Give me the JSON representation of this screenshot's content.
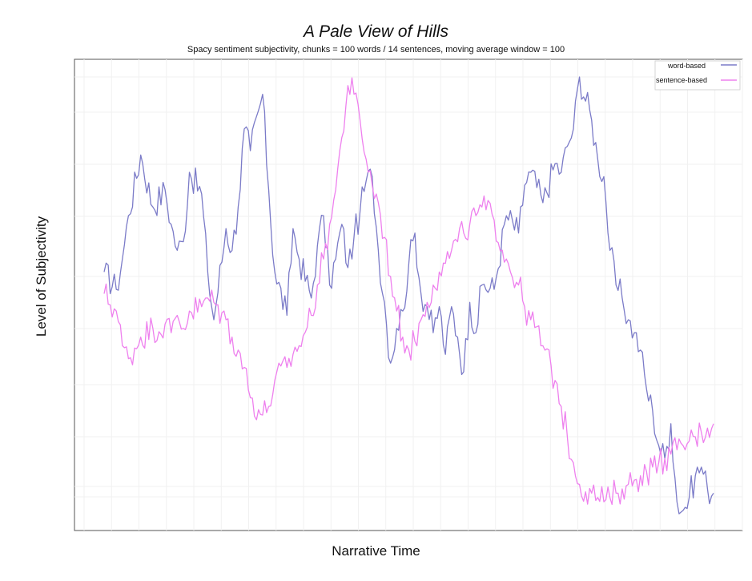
{
  "chart_data": {
    "type": "line",
    "title": "A Pale View of Hills",
    "subtitle": "Spacy sentiment subjectivity, chunks = 100 words / 14 sentences, moving average window = 100",
    "xlabel": "Narrative Time",
    "ylabel": "Level of Subjectivity",
    "grid": true,
    "legend_position": "top-right",
    "x_ticks_labeled": false,
    "y_ticks_labeled": false,
    "xlim": [
      0,
      100
    ],
    "ylim": [
      0,
      100
    ],
    "series": [
      {
        "name": "word-based",
        "color": "#7b7bc8",
        "x": [
          0,
          2,
          3,
          4,
          6,
          8,
          10,
          11,
          12,
          13,
          14,
          16,
          17,
          18,
          20,
          21,
          22,
          23,
          24,
          26,
          27,
          28,
          30,
          31,
          32,
          34,
          35,
          36,
          37,
          38,
          39,
          40,
          41,
          42,
          43,
          44,
          45,
          46,
          47,
          48,
          49,
          50,
          51,
          52,
          53,
          54,
          55,
          56,
          57,
          58,
          59,
          60,
          61,
          62,
          64,
          66,
          68,
          69,
          70,
          72,
          74,
          75,
          76,
          77,
          78,
          80,
          81,
          82,
          83,
          84,
          85,
          86,
          87,
          88,
          89,
          90,
          91,
          92,
          93,
          94,
          95,
          96,
          97,
          98,
          99,
          100
        ],
        "values": [
          55,
          51,
          58,
          68,
          82,
          70,
          74,
          66,
          60,
          62,
          78,
          73,
          55,
          44,
          65,
          60,
          70,
          88,
          83,
          96,
          74,
          55,
          45,
          65,
          58,
          49,
          61,
          68,
          52,
          58,
          66,
          56,
          63,
          69,
          76,
          77,
          60,
          48,
          34,
          42,
          46,
          57,
          64,
          50,
          47,
          41,
          47,
          36,
          47,
          40,
          32,
          48,
          41,
          52,
          51,
          68,
          64,
          75,
          78,
          71,
          80,
          78,
          84,
          88,
          100,
          90,
          81,
          77,
          60,
          52,
          49,
          44,
          41,
          37,
          28,
          23,
          15,
          12,
          20,
          2,
          0,
          3,
          8,
          10,
          5,
          4
        ]
      },
      {
        "name": "sentence-based",
        "color": "#ee80ee",
        "x": [
          0,
          2,
          3,
          4,
          6,
          8,
          10,
          11,
          12,
          13,
          14,
          16,
          17,
          18,
          20,
          21,
          22,
          23,
          24,
          26,
          27,
          28,
          30,
          31,
          32,
          34,
          35,
          36,
          37,
          38,
          39,
          40,
          41,
          42,
          43,
          44,
          45,
          46,
          47,
          48,
          49,
          50,
          51,
          52,
          53,
          54,
          55,
          56,
          57,
          58,
          59,
          60,
          61,
          62,
          64,
          66,
          68,
          69,
          70,
          72,
          74,
          75,
          76,
          77,
          78,
          80,
          81,
          82,
          83,
          84,
          85,
          86,
          87,
          88,
          89,
          90,
          91,
          92,
          93,
          94,
          95,
          96,
          97,
          98,
          99,
          100
        ],
        "values": [
          50,
          46,
          38,
          35,
          40,
          42,
          43,
          41,
          45,
          42,
          46,
          47,
          49,
          48,
          44,
          40,
          37,
          33,
          26,
          22,
          24,
          30,
          33,
          36,
          38,
          45,
          52,
          58,
          66,
          74,
          86,
          98,
          96,
          90,
          81,
          75,
          71,
          63,
          54,
          46,
          40,
          37,
          39,
          44,
          48,
          52,
          55,
          57,
          60,
          62,
          64,
          66,
          68,
          70,
          67,
          58,
          52,
          47,
          44,
          38,
          30,
          24,
          17,
          11,
          6,
          4,
          3,
          2,
          3,
          4,
          5,
          6,
          7,
          8,
          9,
          10,
          11,
          12,
          13,
          14,
          15,
          16,
          17,
          18,
          19,
          20
        ]
      }
    ]
  }
}
